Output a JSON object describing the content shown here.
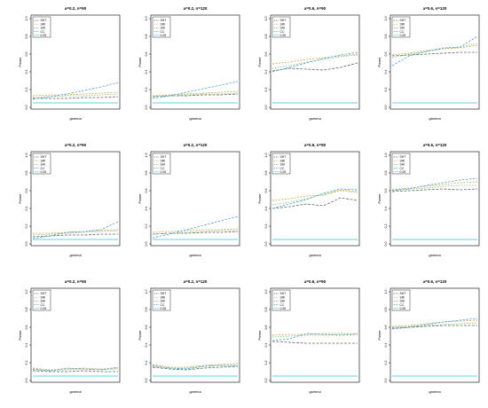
{
  "xlabel": "gamma",
  "ylabel": "Power",
  "yticks": [
    "0.0",
    "0.2",
    "0.4",
    "0.6",
    "0.8",
    "1.0"
  ],
  "legend": [
    "SHT",
    "SRI",
    "SAI",
    "CC",
    "0.05"
  ],
  "colors": {
    "SHT": "#666666",
    "SRI": "#d9a24a",
    "SAI": "#7fbf7f",
    "CC": "#4fa3d8",
    "0.05": "#5fd3e3",
    "axis": "#000000"
  },
  "chart_data": [
    {
      "type": "line",
      "title": "a=0.2, n=90",
      "xlabel": "gamma",
      "ylabel": "Power",
      "ylim": [
        0,
        1
      ],
      "legend": "top-left",
      "x": [
        1,
        2,
        3,
        4,
        5,
        6
      ],
      "series": [
        {
          "name": "SHT",
          "values": [
            0.1,
            0.1,
            0.1,
            0.11,
            0.11,
            0.12
          ]
        },
        {
          "name": "SRI",
          "values": [
            0.13,
            0.14,
            0.14,
            0.15,
            0.16,
            0.17
          ]
        },
        {
          "name": "SAI",
          "values": [
            0.11,
            0.12,
            0.13,
            0.13,
            0.14,
            0.15
          ]
        },
        {
          "name": "CC",
          "values": [
            0.09,
            0.12,
            0.15,
            0.19,
            0.23,
            0.28
          ]
        },
        {
          "name": "0.05",
          "values": [
            0.05,
            0.05,
            0.05,
            0.05,
            0.05,
            0.05
          ]
        }
      ]
    },
    {
      "type": "line",
      "title": "a=0.2, n=120",
      "xlabel": "gamma",
      "ylabel": "Power",
      "ylim": [
        0,
        1
      ],
      "legend": "top-left",
      "x": [
        1,
        2,
        3,
        4,
        5,
        6
      ],
      "series": [
        {
          "name": "SHT",
          "values": [
            0.12,
            0.13,
            0.13,
            0.14,
            0.14,
            0.15
          ]
        },
        {
          "name": "SRI",
          "values": [
            0.13,
            0.14,
            0.15,
            0.16,
            0.17,
            0.18
          ]
        },
        {
          "name": "SAI",
          "values": [
            0.12,
            0.13,
            0.14,
            0.15,
            0.15,
            0.16
          ]
        },
        {
          "name": "CC",
          "values": [
            0.1,
            0.13,
            0.17,
            0.21,
            0.25,
            0.29
          ]
        },
        {
          "name": "0.05",
          "values": [
            0.05,
            0.05,
            0.05,
            0.05,
            0.05,
            0.05
          ]
        }
      ]
    },
    {
      "type": "line",
      "title": "a=0.6, n=90",
      "xlabel": "gamma",
      "ylabel": "Power",
      "ylim": [
        0,
        1
      ],
      "legend": "top-left",
      "x": [
        1,
        2,
        3,
        4,
        5,
        6
      ],
      "series": [
        {
          "name": "SHT",
          "values": [
            0.41,
            0.44,
            0.43,
            0.42,
            0.45,
            0.5
          ]
        },
        {
          "name": "SRI",
          "values": [
            0.49,
            0.51,
            0.54,
            0.56,
            0.58,
            0.6
          ]
        },
        {
          "name": "SAI",
          "values": [
            0.44,
            0.47,
            0.51,
            0.54,
            0.57,
            0.59
          ]
        },
        {
          "name": "CC",
          "values": [
            0.4,
            0.45,
            0.5,
            0.55,
            0.59,
            0.62
          ]
        },
        {
          "name": "0.05",
          "values": [
            0.05,
            0.05,
            0.05,
            0.05,
            0.05,
            0.05
          ]
        }
      ]
    },
    {
      "type": "line",
      "title": "a=0.6, n=120",
      "xlabel": "gamma",
      "ylabel": "Power",
      "ylim": [
        0,
        1
      ],
      "legend": "top-left",
      "x": [
        1,
        2,
        3,
        4,
        5,
        6
      ],
      "series": [
        {
          "name": "SHT",
          "values": [
            0.58,
            0.59,
            0.6,
            0.61,
            0.62,
            0.62
          ]
        },
        {
          "name": "SRI",
          "values": [
            0.59,
            0.61,
            0.64,
            0.66,
            0.67,
            0.7
          ]
        },
        {
          "name": "SAI",
          "values": [
            0.56,
            0.6,
            0.63,
            0.66,
            0.68,
            0.72
          ]
        },
        {
          "name": "CC",
          "values": [
            0.47,
            0.58,
            0.63,
            0.67,
            0.68,
            0.8
          ]
        },
        {
          "name": "0.05",
          "values": [
            0.05,
            0.05,
            0.05,
            0.05,
            0.05,
            0.05
          ]
        }
      ]
    },
    {
      "type": "line",
      "title": "a=0.2, n=90",
      "xlabel": "gamma",
      "ylabel": "Power",
      "ylim": [
        0,
        1
      ],
      "legend": "top-left",
      "x": [
        1,
        2,
        3,
        4,
        5,
        6
      ],
      "series": [
        {
          "name": "SHT",
          "values": [
            0.08,
            0.09,
            0.1,
            0.1,
            0.11,
            0.11
          ]
        },
        {
          "name": "SRI",
          "values": [
            0.12,
            0.12,
            0.13,
            0.14,
            0.15,
            0.16
          ]
        },
        {
          "name": "SAI",
          "values": [
            0.1,
            0.11,
            0.12,
            0.13,
            0.14,
            0.15
          ]
        },
        {
          "name": "CC",
          "values": [
            0.06,
            0.09,
            0.13,
            0.14,
            0.16,
            0.25
          ]
        },
        {
          "name": "0.05",
          "values": [
            0.05,
            0.05,
            0.05,
            0.05,
            0.05,
            0.05
          ]
        }
      ]
    },
    {
      "type": "line",
      "title": "a=0.2, n=120",
      "xlabel": "gamma",
      "ylabel": "Power",
      "ylim": [
        0,
        1
      ],
      "legend": "top-left",
      "x": [
        1,
        2,
        3,
        4,
        5,
        6
      ],
      "series": [
        {
          "name": "SHT",
          "values": [
            0.11,
            0.12,
            0.12,
            0.13,
            0.13,
            0.14
          ]
        },
        {
          "name": "SRI",
          "values": [
            0.13,
            0.14,
            0.15,
            0.16,
            0.16,
            0.17
          ]
        },
        {
          "name": "SAI",
          "values": [
            0.11,
            0.12,
            0.13,
            0.14,
            0.15,
            0.15
          ]
        },
        {
          "name": "CC",
          "values": [
            0.07,
            0.11,
            0.16,
            0.21,
            0.26,
            0.31
          ]
        },
        {
          "name": "0.05",
          "values": [
            0.05,
            0.05,
            0.05,
            0.05,
            0.05,
            0.05
          ]
        }
      ]
    },
    {
      "type": "line",
      "title": "a=0.6, n=90",
      "xlabel": "gamma",
      "ylabel": "Power",
      "ylim": [
        0,
        1
      ],
      "legend": "top-left",
      "x": [
        1,
        2,
        3,
        4,
        5,
        6
      ],
      "series": [
        {
          "name": "SHT",
          "values": [
            0.4,
            0.42,
            0.45,
            0.43,
            0.52,
            0.49
          ]
        },
        {
          "name": "SRI",
          "values": [
            0.49,
            0.51,
            0.54,
            0.55,
            0.61,
            0.59
          ]
        },
        {
          "name": "SAI",
          "values": [
            0.44,
            0.47,
            0.51,
            0.56,
            0.6,
            0.58
          ]
        },
        {
          "name": "CC",
          "values": [
            0.4,
            0.45,
            0.5,
            0.57,
            0.62,
            0.61
          ]
        },
        {
          "name": "0.05",
          "values": [
            0.05,
            0.05,
            0.05,
            0.05,
            0.05,
            0.05
          ]
        }
      ]
    },
    {
      "type": "line",
      "title": "a=0.6, n=120",
      "xlabel": "gamma",
      "ylabel": "Power",
      "ylim": [
        0,
        1
      ],
      "legend": "top-left",
      "x": [
        1,
        2,
        3,
        4,
        5,
        6
      ],
      "series": [
        {
          "name": "SHT",
          "values": [
            0.59,
            0.6,
            0.61,
            0.62,
            0.61,
            0.62
          ]
        },
        {
          "name": "SRI",
          "values": [
            0.61,
            0.63,
            0.65,
            0.67,
            0.69,
            0.7
          ]
        },
        {
          "name": "SAI",
          "values": [
            0.61,
            0.62,
            0.63,
            0.65,
            0.66,
            0.66
          ]
        },
        {
          "name": "CC",
          "values": [
            0.6,
            0.62,
            0.66,
            0.69,
            0.72,
            0.74
          ]
        },
        {
          "name": "0.05",
          "values": [
            0.05,
            0.05,
            0.05,
            0.05,
            0.05,
            0.05
          ]
        }
      ]
    },
    {
      "type": "line",
      "title": "a=0.2, n=90",
      "xlabel": "gamma",
      "ylabel": "Power",
      "ylim": [
        0,
        1
      ],
      "legend": "top-left",
      "x": [
        1,
        2,
        3,
        4,
        5,
        6
      ],
      "series": [
        {
          "name": "SHT",
          "values": [
            0.11,
            0.1,
            0.1,
            0.11,
            0.1,
            0.1
          ]
        },
        {
          "name": "SRI",
          "values": [
            0.14,
            0.12,
            0.13,
            0.14,
            0.13,
            0.14
          ]
        },
        {
          "name": "SAI",
          "values": [
            0.12,
            0.11,
            0.12,
            0.13,
            0.12,
            0.13
          ]
        },
        {
          "name": "CC",
          "values": [
            0.13,
            0.11,
            0.14,
            0.13,
            0.12,
            0.15
          ]
        },
        {
          "name": "0.05",
          "values": [
            0.05,
            0.05,
            0.05,
            0.05,
            0.05,
            0.05
          ]
        }
      ]
    },
    {
      "type": "line",
      "title": "a=0.2, n=120",
      "xlabel": "gamma",
      "ylabel": "Power",
      "ylim": [
        0,
        1
      ],
      "legend": "top-left",
      "x": [
        1,
        2,
        3,
        4,
        5,
        6
      ],
      "series": [
        {
          "name": "SHT",
          "values": [
            0.15,
            0.13,
            0.12,
            0.14,
            0.15,
            0.16
          ]
        },
        {
          "name": "SRI",
          "values": [
            0.18,
            0.15,
            0.15,
            0.17,
            0.18,
            0.19
          ]
        },
        {
          "name": "SAI",
          "values": [
            0.16,
            0.14,
            0.14,
            0.16,
            0.17,
            0.17
          ]
        },
        {
          "name": "CC",
          "values": [
            0.17,
            0.14,
            0.13,
            0.16,
            0.17,
            0.17
          ]
        },
        {
          "name": "0.05",
          "values": [
            0.05,
            0.05,
            0.05,
            0.05,
            0.05,
            0.05
          ]
        }
      ]
    },
    {
      "type": "line",
      "title": "a=0.6, n=90",
      "xlabel": "gamma",
      "ylabel": "Power",
      "ylim": [
        0,
        1
      ],
      "legend": "top-left",
      "x": [
        1,
        2,
        3,
        4,
        5,
        6
      ],
      "series": [
        {
          "name": "SHT",
          "values": [
            0.44,
            0.43,
            0.42,
            0.42,
            0.42,
            0.42
          ]
        },
        {
          "name": "SRI",
          "values": [
            0.51,
            0.52,
            0.52,
            0.53,
            0.53,
            0.53
          ]
        },
        {
          "name": "SAI",
          "values": [
            0.49,
            0.5,
            0.51,
            0.51,
            0.52,
            0.52
          ]
        },
        {
          "name": "CC",
          "values": [
            0.45,
            0.47,
            0.53,
            0.52,
            0.51,
            0.52
          ]
        },
        {
          "name": "0.05",
          "values": [
            0.05,
            0.05,
            0.05,
            0.05,
            0.05,
            0.05
          ]
        }
      ]
    },
    {
      "type": "line",
      "title": "a=0.6, n=120",
      "xlabel": "gamma",
      "ylabel": "Power",
      "ylim": [
        0,
        1
      ],
      "legend": "top-left",
      "x": [
        1,
        2,
        3,
        4,
        5,
        6
      ],
      "series": [
        {
          "name": "SHT",
          "values": [
            0.59,
            0.6,
            0.61,
            0.62,
            0.62,
            0.62
          ]
        },
        {
          "name": "SRI",
          "values": [
            0.61,
            0.62,
            0.64,
            0.66,
            0.67,
            0.68
          ]
        },
        {
          "name": "SAI",
          "values": [
            0.6,
            0.61,
            0.62,
            0.63,
            0.64,
            0.65
          ]
        },
        {
          "name": "CC",
          "values": [
            0.58,
            0.6,
            0.63,
            0.66,
            0.68,
            0.7
          ]
        },
        {
          "name": "0.05",
          "values": [
            0.05,
            0.05,
            0.05,
            0.05,
            0.05,
            0.05
          ]
        }
      ]
    }
  ]
}
